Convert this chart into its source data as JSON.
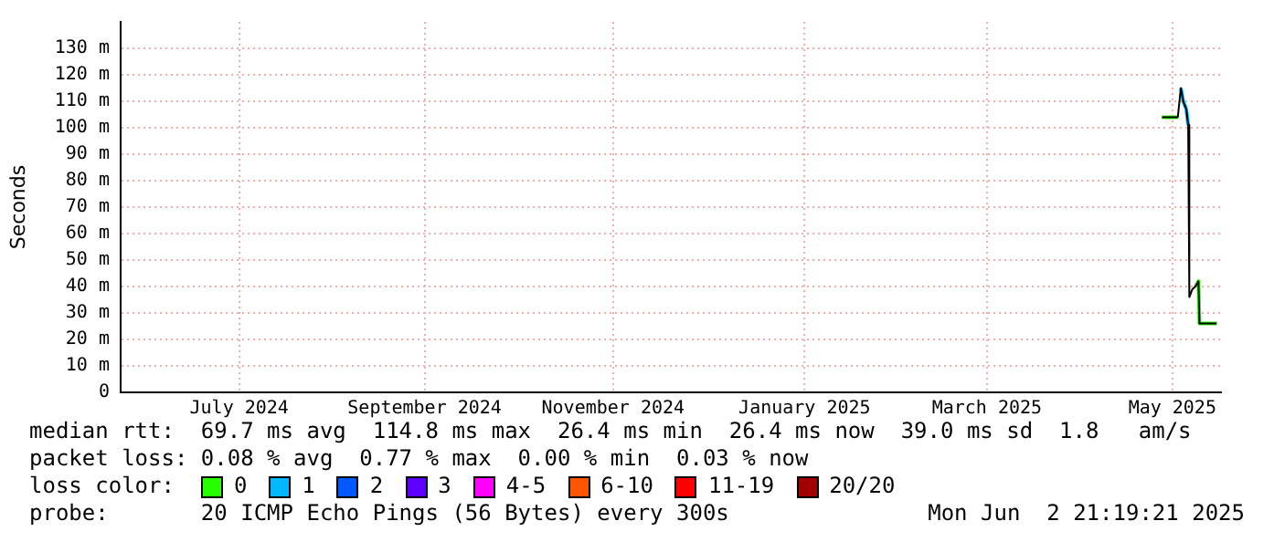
{
  "chart_data": {
    "type": "line",
    "ylabel": "Seconds",
    "xlim": [
      "2024-06-05",
      "2025-06-02"
    ],
    "xticks": [
      {
        "value": "2024-07-14",
        "label": "July 2024"
      },
      {
        "value": "2024-09-13",
        "label": "September 2024"
      },
      {
        "value": "2024-11-14",
        "label": "November 2024"
      },
      {
        "value": "2025-01-16",
        "label": "January 2025"
      },
      {
        "value": "2025-03-17",
        "label": "March 2025"
      },
      {
        "value": "2025-05-17",
        "label": "May 2025"
      }
    ],
    "ylim": [
      0,
      140
    ],
    "yticks": [
      0,
      {
        "value": 10,
        "label": "10 m"
      },
      {
        "value": 20,
        "label": "20 m"
      },
      {
        "value": 30,
        "label": "30 m"
      },
      {
        "value": 40,
        "label": "40 m"
      },
      {
        "value": 50,
        "label": "50 m"
      },
      {
        "value": 60,
        "label": "60 m"
      },
      {
        "value": 70,
        "label": "70 m"
      },
      {
        "value": 80,
        "label": "80 m"
      },
      {
        "value": 90,
        "label": "90 m"
      },
      {
        "value": 100,
        "label": "100 m"
      },
      {
        "value": 110,
        "label": "110 m"
      },
      {
        "value": 120,
        "label": "120 m"
      },
      {
        "value": 130,
        "label": "130 m"
      }
    ],
    "grid": true,
    "legend": "bottom",
    "legend_title": "loss color:",
    "marker": "none",
    "line_style": "solid",
    "x": [
      "2025-05-13T14:00",
      "2025-05-18T19:00",
      "2025-05-19T19:00",
      "2025-05-20T14:00",
      "2025-05-21T14:00",
      "2025-05-22T05:00",
      "2025-05-22T14:00",
      "2025-05-23T14:00",
      "2025-05-24T14:00",
      "2025-05-25T14:00",
      "2025-05-25T22:00",
      "2025-05-31T14:00"
    ],
    "series": [
      {
        "color": "#000000",
        "values": [
          104,
          104,
          115,
          110,
          107,
          101,
          36,
          39,
          40,
          42,
          26,
          26
        ]
      },
      {
        "name": "0",
        "color": "#26ff00",
        "values": [
          104,
          104,
          null,
          null,
          null,
          null,
          null,
          null,
          40,
          42,
          26,
          26
        ]
      },
      {
        "name": "1",
        "color": "#00b8ff",
        "values": [
          null,
          null,
          115,
          110,
          107,
          101,
          null,
          null,
          null,
          null,
          null,
          null
        ]
      },
      {
        "name": "2",
        "color": "#0059ff",
        "values": [
          null,
          null,
          null,
          null,
          null,
          null,
          null,
          null,
          null,
          null,
          null,
          null
        ]
      },
      {
        "name": "3",
        "color": "#5e00ff",
        "values": [
          null,
          null,
          null,
          null,
          null,
          null,
          null,
          null,
          null,
          null,
          null,
          null
        ]
      },
      {
        "name": "4-5",
        "color": "#ff00ff",
        "values": [
          null,
          null,
          null,
          null,
          null,
          null,
          null,
          null,
          null,
          null,
          null,
          null
        ]
      },
      {
        "name": "6-10",
        "color": "#ff5500",
        "values": [
          null,
          null,
          null,
          null,
          null,
          null,
          null,
          null,
          null,
          null,
          null,
          null
        ]
      },
      {
        "name": "11-19",
        "color": "#ff0000",
        "values": [
          null,
          null,
          null,
          null,
          null,
          null,
          null,
          null,
          null,
          null,
          null,
          null
        ]
      },
      {
        "name": "20/20",
        "color": "#a10000",
        "values": [
          null,
          null,
          null,
          null,
          null,
          null,
          null,
          null,
          null,
          null,
          null,
          null
        ]
      }
    ],
    "annotations": [
      "median rtt:  69.7 ms avg  114.8 ms max  26.4 ms min  26.4 ms now  39.0 ms sd  1.8   am/s",
      "packet loss: 0.08 % avg  0.77 % max  0.00 % min  0.03 % now",
      "probe:       20 ICMP Echo Pings (56 Bytes) every 300s",
      "Mon Jun  2 21:19:21 2025"
    ]
  }
}
